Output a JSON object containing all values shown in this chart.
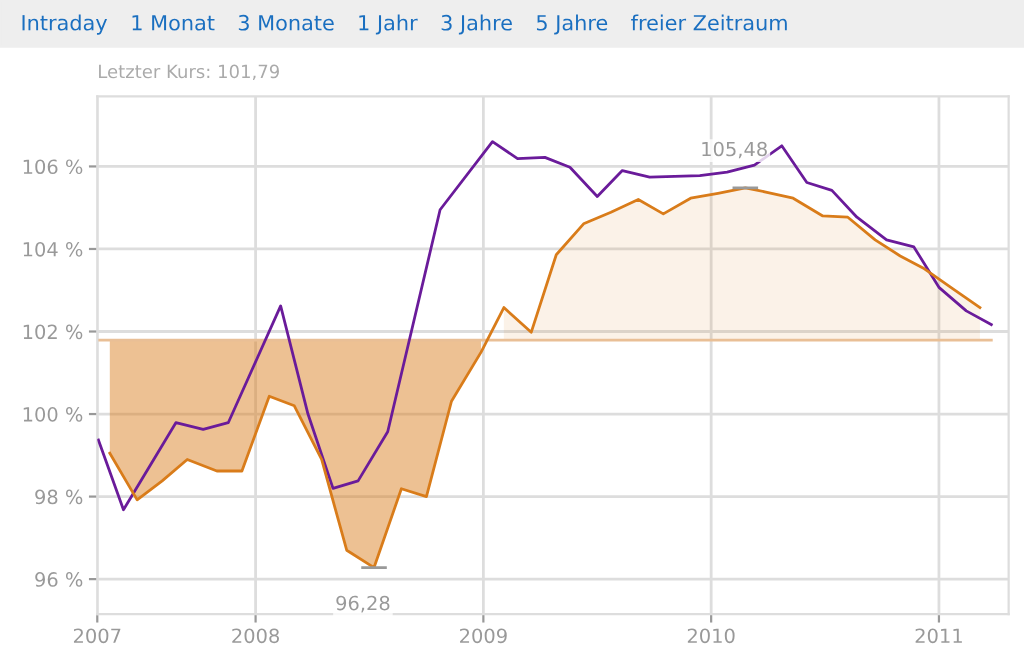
{
  "chart_data": {
    "type": "line",
    "subtitle": "Letzter Kurs: 101,79",
    "annotations": [
      "Intraday",
      "1 Monat",
      "3 Monate",
      "1 Jahr",
      "3 Jahre",
      "5 Jahre",
      "freier Zeitraum",
      {
        "text": "105,48",
        "x": 2010.15,
        "y": 105.48
      },
      {
        "text": "96,28",
        "x": 2008.52,
        "y": 96.28
      }
    ],
    "series": [
      {
        "type": "line",
        "color": "#6a1b9a",
        "x": [
          2007.31,
          2007.42,
          2007.65,
          2007.77,
          2007.88,
          2008.11,
          2008.23,
          2008.34,
          2008.45,
          2008.58,
          2008.81,
          2009.04,
          2009.15,
          2009.27,
          2009.38,
          2009.5,
          2009.61,
          2009.73,
          2009.84,
          2009.95,
          2010.07,
          2010.19,
          2010.31,
          2010.42,
          2010.53,
          2010.64,
          2010.77,
          2010.89,
          2011.0,
          2011.12,
          2011.23
        ],
        "values": [
          99.37,
          97.68,
          99.79,
          99.63,
          99.79,
          102.62,
          100.0,
          98.2,
          98.38,
          99.57,
          104.95,
          106.6,
          106.19,
          106.22,
          105.98,
          105.27,
          105.9,
          105.74,
          105.76,
          105.78,
          105.86,
          106.03,
          106.5,
          105.61,
          105.42,
          104.77,
          104.22,
          104.05,
          103.07,
          102.5,
          102.17
        ]
      },
      {
        "color": "#d97c1a",
        "x": [
          2007.36,
          2007.48,
          2007.59,
          2007.7,
          2007.83,
          2007.94,
          2008.06,
          2008.17,
          2008.29,
          2008.4,
          2008.52,
          2008.64,
          2008.75,
          2008.86,
          2008.99,
          2009.09,
          2009.21,
          2009.32,
          2009.44,
          2009.56,
          2009.68,
          2009.79,
          2009.91,
          2010.03,
          2010.15,
          2010.24,
          2010.36,
          2010.49,
          2010.6,
          2010.72,
          2010.83,
          2010.93,
          2011.06,
          2011.18
        ],
        "values": [
          99.05,
          97.92,
          98.38,
          98.9,
          98.62,
          98.62,
          100.43,
          100.2,
          98.9,
          96.7,
          96.28,
          98.19,
          98.0,
          100.31,
          101.5,
          102.58,
          101.98,
          103.86,
          104.61,
          104.89,
          105.2,
          104.85,
          105.23,
          105.35,
          105.48,
          105.38,
          105.23,
          104.8,
          104.77,
          104.22,
          103.83,
          103.54,
          103.04,
          102.58
        ],
        "lower": [
          99.05,
          97.92,
          98.38,
          98.9,
          98.62,
          98.62,
          100.43,
          100.2,
          98.9,
          96.7,
          96.28,
          98.19,
          98.0,
          100.31,
          101.5,
          101.79,
          101.79,
          101.79,
          101.79,
          101.79,
          101.79,
          101.79,
          101.79,
          101.79,
          101.79,
          101.79,
          101.79,
          101.79,
          101.79,
          101.79,
          101.79,
          101.79,
          101.79,
          101.79
        ],
        "upper": [
          101.79,
          101.79,
          101.79,
          101.79,
          101.79,
          101.79,
          101.79,
          101.79,
          101.79,
          101.79,
          101.79,
          101.79,
          101.79,
          101.79,
          101.79,
          102.58,
          101.98,
          103.86,
          104.61,
          104.89,
          105.2,
          104.85,
          105.23,
          105.35,
          105.48,
          105.38,
          105.23,
          104.8,
          104.77,
          104.22,
          103.83,
          103.54,
          103.04,
          102.58
        ]
      }
    ],
    "ref_lines": [
      {
        "axis": "y",
        "value": 101.79,
        "color": "#e9bf96"
      }
    ],
    "xlim": [
      2007.305,
      2011.306
    ],
    "xticks": [
      {
        "value": 2007.305,
        "label": "2007"
      },
      2008,
      2009,
      2010,
      2011
    ],
    "ylim": [
      95.15,
      107.7
    ],
    "yticks": [
      {
        "value": 96,
        "label": "96 %"
      },
      {
        "value": 98,
        "label": "98 %"
      },
      {
        "value": 100,
        "label": "100 %"
      },
      {
        "value": 102,
        "label": "102 %"
      },
      {
        "value": 104,
        "label": "104 %"
      },
      {
        "value": 106,
        "label": "106 %"
      }
    ],
    "grid": true,
    "legend": false
  }
}
